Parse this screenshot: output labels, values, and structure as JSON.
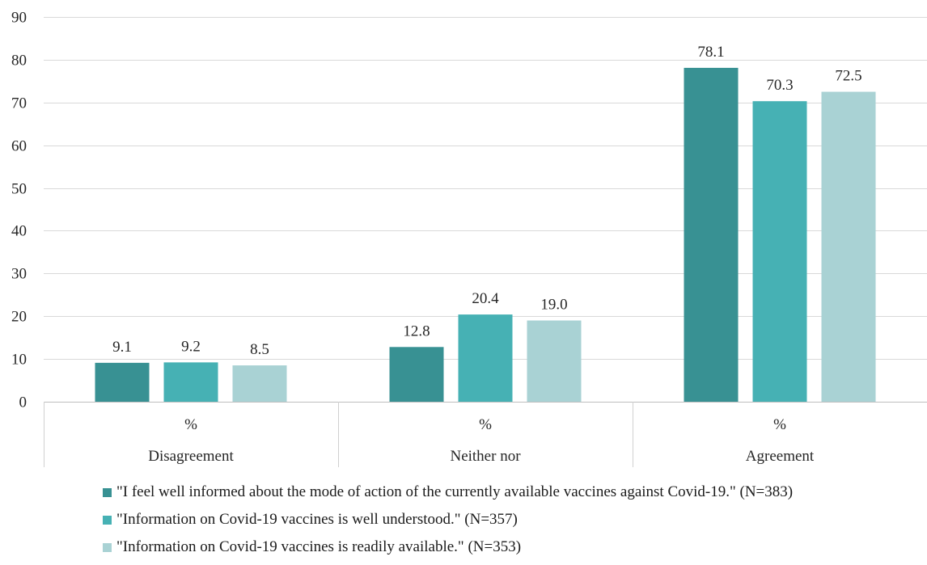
{
  "chart_data": {
    "type": "bar",
    "title": "",
    "xlabel": "",
    "ylabel": "",
    "ylim": [
      0,
      90
    ],
    "yticks": [
      0,
      10,
      20,
      30,
      40,
      50,
      60,
      70,
      80,
      90
    ],
    "grid": true,
    "legend_position": "bottom",
    "categories": [
      "Disagreement",
      "Neither nor",
      "Agreement"
    ],
    "category_sublabels": [
      "%",
      "%",
      "%"
    ],
    "series": [
      {
        "name": "\"I feel well informed about the mode of action of the currently available vaccines against Covid-19.\" (N=383)",
        "color": "#389193",
        "values": [
          9.1,
          12.8,
          78.1
        ],
        "labels": [
          "9.1",
          "12.8",
          "78.1"
        ]
      },
      {
        "name": "\"Information on Covid-19 vaccines is well understood.\" (N=357)",
        "color": "#46b1b4",
        "values": [
          9.2,
          20.4,
          70.3
        ],
        "labels": [
          "9.2",
          "20.4",
          "70.3"
        ]
      },
      {
        "name": "\"Information on Covid-19 vaccines is readily available.\" (N=353)",
        "color": "#a9d2d4",
        "values": [
          8.5,
          19.0,
          72.5
        ],
        "labels": [
          "8.5",
          "19.0",
          "72.5"
        ]
      }
    ]
  }
}
